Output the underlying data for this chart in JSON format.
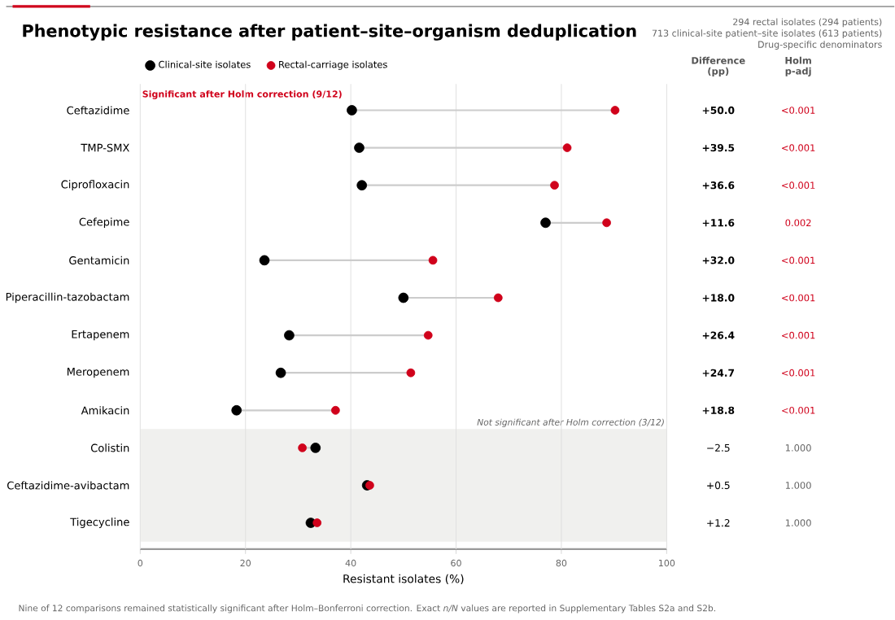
{
  "chart_data": {
    "type": "lollipop",
    "orientation": "horizontal",
    "title": "Phenotypic resistance after patient–site–organism deduplication",
    "subtitle": "294 rectal isolates (294 patients)",
    "xlabel": "Resistant isolates (%)",
    "categories": [
      "Ceftazidime",
      "TMP-SMX",
      "Ciprofloxacin",
      "Cefepime",
      "Gentamicin",
      "Piperacillin-tazobactam",
      "Ertapenem",
      "Meropenem",
      "Amikacin",
      "Colistin",
      "Ceftazidime-avibactam",
      "Tigecycline"
    ],
    "series": [
      {
        "name": "Clinical-site isolates",
        "color": "#000000",
        "values": [
          40.2,
          41.6,
          42.1,
          77.0,
          23.6,
          50.0,
          28.3,
          26.7,
          18.3,
          33.3,
          43.1,
          32.4
        ]
      },
      {
        "name": "Rectal-carriage isolates",
        "color": "#d0021b",
        "values": [
          90.2,
          81.1,
          78.7,
          88.6,
          55.6,
          68.0,
          54.7,
          51.4,
          37.1,
          30.8,
          43.6,
          33.6
        ]
      }
    ],
    "xlim": [
      0,
      100
    ],
    "xticks": [
      0,
      20,
      40,
      60,
      80,
      100
    ],
    "grid": "x",
    "legend": "top left",
    "marker": "circle",
    "bands": [
      {
        "axis": "y",
        "from": "Colistin",
        "to": "Tigecycline",
        "label": "Not significant after Holm correction (3/12)",
        "color": "#f0f0ee"
      }
    ],
    "annotations": [
      "713 clinical-site patient–site isolates (613 patients)",
      "Drug-specific denominators",
      "Difference (pp)",
      "Holm p-adj",
      "Nine of 12 comparisons remained statistically significant after Holm–Bonferroni correction. Exact *n/N* values are reported in Supplementary Tables S2a and S2b.",
      "Significant after Holm correction (9/12)",
      "+50.0",
      "<0.001",
      "+39.5",
      "<0.001",
      "+36.6",
      "<0.001",
      "+11.6",
      "0.002",
      "+32.0",
      "<0.001",
      "+18.0",
      "<0.001",
      "+26.4",
      "<0.001",
      "+24.7",
      "<0.001",
      "+18.8",
      "<0.001",
      "−2.5",
      "1.000",
      "+0.5",
      "1.000",
      "+1.2",
      "1.000"
    ]
  }
}
